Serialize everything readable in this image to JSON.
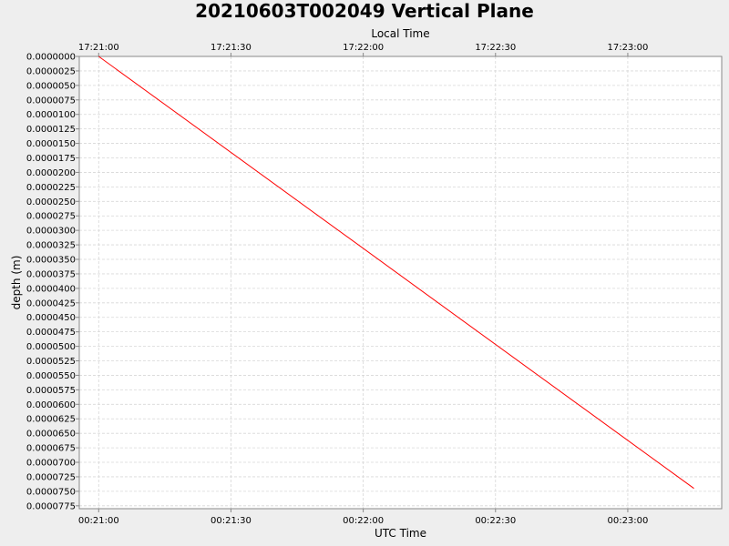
{
  "chart_data": {
    "type": "line",
    "title": "20210603T002049 Vertical Plane",
    "xlabel": "UTC Time",
    "x2label": "Local Time",
    "ylabel": "depth (m)",
    "x_ticks_utc": [
      "00:21:00",
      "00:21:30",
      "00:22:00",
      "00:22:30",
      "00:23:00"
    ],
    "x_ticks_local": [
      "17:21:00",
      "17:21:30",
      "17:22:00",
      "17:22:30",
      "17:23:00"
    ],
    "x_tick_seconds": [
      0,
      30,
      60,
      90,
      120
    ],
    "xlim_seconds": [
      -4.4,
      141.3
    ],
    "y_ticks": [
      "0.0000000",
      "0.0000025",
      "0.0000050",
      "0.0000075",
      "0.0000100",
      "0.0000125",
      "0.0000150",
      "0.0000175",
      "0.0000200",
      "0.0000225",
      "0.0000250",
      "0.0000275",
      "0.0000300",
      "0.0000325",
      "0.0000350",
      "0.0000375",
      "0.0000400",
      "0.0000425",
      "0.0000450",
      "0.0000475",
      "0.0000500",
      "0.0000525",
      "0.0000550",
      "0.0000575",
      "0.0000600",
      "0.0000625",
      "0.0000650",
      "0.0000675",
      "0.0000700",
      "0.0000725",
      "0.0000750",
      "0.0000775"
    ],
    "ylim": [
      0.0,
      7.8e-05
    ],
    "y_inverted": true,
    "grid": true,
    "series": [
      {
        "color": "#ff0000",
        "x": [
          "00:21:00",
          "00:23:15"
        ],
        "y": [
          0.0,
          7.45e-05
        ]
      }
    ]
  }
}
